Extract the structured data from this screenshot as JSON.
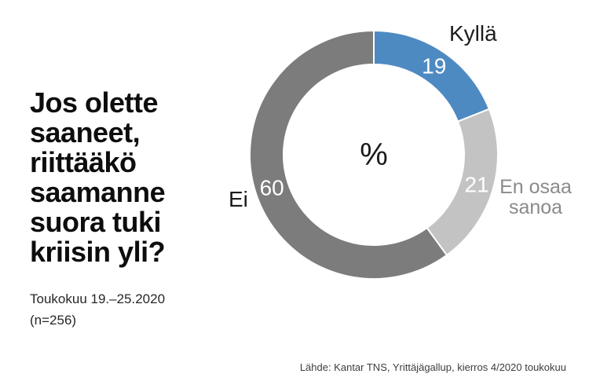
{
  "title": "Jos olette saaneet, riittääkö saamanne suora tuki kriisin yli?",
  "subtitle": {
    "period": "Toukokuu 19.–25.2020",
    "sample": "(n=256)"
  },
  "source": "Lähde: Kantar TNS, Yrittäjägallup, kierros 4/2020 toukokuu",
  "chart_data": {
    "type": "pie",
    "subtype": "donut",
    "center_label": "%",
    "start_angle_deg": 0,
    "direction": "clockwise",
    "legend_position": "outside-labels",
    "categories": [
      "Kyllä",
      "En osaa sanoa",
      "Ei"
    ],
    "values": [
      19,
      21,
      60
    ],
    "segments": [
      {
        "label": "Kyllä",
        "value": 19,
        "color": "#4e8ac2",
        "value_text_color": "#ffffff",
        "label_text_color": "#1c1c1c"
      },
      {
        "label": "En osaa sanoa",
        "value": 21,
        "color": "#c3c3c4",
        "value_text_color": "#ffffff",
        "label_text_color": "#8a8a8a"
      },
      {
        "label": "Ei",
        "value": 60,
        "color": "#7c7c7c",
        "value_text_color": "#ffffff",
        "label_text_color": "#1c1c1c"
      }
    ],
    "separator_color": "#ffffff"
  }
}
